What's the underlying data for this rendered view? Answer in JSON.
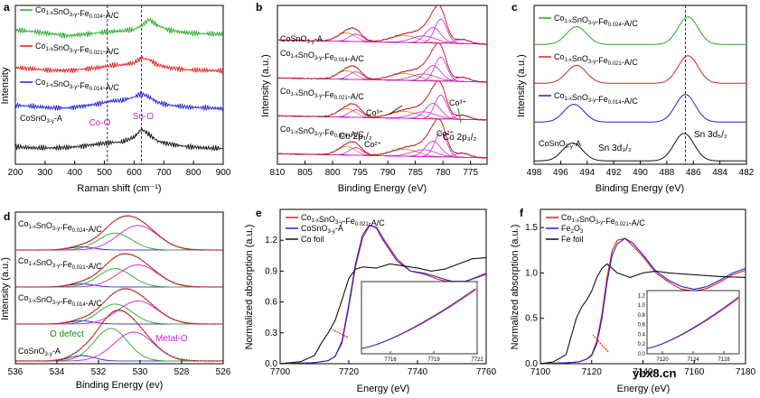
{
  "watermark": "ybx8.cn",
  "chart_data": [
    {
      "id": "a",
      "type": "line",
      "panel_label": "a",
      "xlabel": "Raman shift (cm⁻¹)",
      "ylabel": "Intensity",
      "xlim": [
        200,
        900
      ],
      "xticks": [
        200,
        300,
        400,
        500,
        600,
        700,
        800,
        900
      ],
      "vlines": [
        510,
        625
      ],
      "annotations": [
        {
          "text": "Co-O",
          "x": 500,
          "color": "#d020d0"
        },
        {
          "text": "Sn-O",
          "x": 625,
          "color": "#d020d0"
        }
      ],
      "series": [
        {
          "name": "Co1-xSnO3-y-Fe0.024-A/C",
          "color": "#22aa22",
          "offset": 4,
          "x": [
            200,
            260,
            320,
            380,
            430,
            480,
            520,
            560,
            600,
            625,
            650,
            680,
            720,
            780,
            840,
            900
          ],
          "y": [
            0.55,
            0.5,
            0.42,
            0.35,
            0.4,
            0.45,
            0.5,
            0.52,
            0.58,
            0.72,
            0.95,
            0.72,
            0.55,
            0.45,
            0.42,
            0.4
          ]
        },
        {
          "name": "Co1-xSnO3-y-Fe0.021-A/C",
          "color": "#e02020",
          "offset": 3,
          "x": [
            200,
            260,
            320,
            380,
            430,
            480,
            520,
            560,
            600,
            625,
            650,
            680,
            720,
            780,
            840,
            900
          ],
          "y": [
            0.5,
            0.45,
            0.4,
            0.4,
            0.45,
            0.5,
            0.58,
            0.6,
            0.68,
            0.85,
            0.8,
            0.6,
            0.5,
            0.42,
            0.4,
            0.38
          ]
        },
        {
          "name": "Co1-xSnO3-y-Fe0.014-A/C",
          "color": "#2020d0",
          "offset": 2,
          "x": [
            200,
            260,
            320,
            380,
            430,
            480,
            520,
            560,
            600,
            625,
            650,
            680,
            720,
            780,
            840,
            900
          ],
          "y": [
            0.45,
            0.4,
            0.35,
            0.35,
            0.42,
            0.5,
            0.6,
            0.62,
            0.75,
            0.88,
            0.75,
            0.55,
            0.45,
            0.38,
            0.35,
            0.32
          ]
        },
        {
          "name": "CoSnO3-y-A",
          "color": "#111111",
          "offset": 1,
          "x": [
            200,
            260,
            320,
            380,
            430,
            480,
            520,
            560,
            600,
            625,
            650,
            680,
            720,
            780,
            840,
            900
          ],
          "y": [
            0.25,
            0.2,
            0.2,
            0.22,
            0.28,
            0.35,
            0.4,
            0.42,
            0.6,
            0.9,
            0.7,
            0.45,
            0.35,
            0.25,
            0.2,
            0.18
          ]
        }
      ]
    },
    {
      "id": "b",
      "type": "line",
      "panel_label": "b",
      "xlabel": "Binding Energy (eV)",
      "ylabel": "Intensity (a.u.)",
      "xlim": [
        810,
        772
      ],
      "xticks": [
        810,
        805,
        800,
        795,
        790,
        785,
        780,
        775
      ],
      "series": [
        {
          "name": "Co1-xSnO3-y-Fe0.024-A/C",
          "peaks": [
            {
              "center": 796.2,
              "height": 0.35
            },
            {
              "center": 786.5,
              "height": 0.3
            },
            {
              "center": 780.6,
              "height": 0.95
            }
          ]
        },
        {
          "name": "Co1-xSnO3-y-Fe0.021-A/C",
          "peaks": [
            {
              "center": 796.2,
              "height": 0.4
            },
            {
              "center": 786.5,
              "height": 0.35
            },
            {
              "center": 780.6,
              "height": 1.0
            }
          ]
        },
        {
          "name": "Co1-xSnO3-y-Fe0.014-A/C",
          "peaks": [
            {
              "center": 796.2,
              "height": 0.4
            },
            {
              "center": 786.5,
              "height": 0.35
            },
            {
              "center": 780.6,
              "height": 1.0
            }
          ]
        },
        {
          "name": "CoSnO3-y-A",
          "peaks": [
            {
              "center": 796.2,
              "height": 0.45
            },
            {
              "center": 786.5,
              "height": 0.3
            },
            {
              "center": 780.6,
              "height": 1.0
            }
          ]
        }
      ],
      "annotations": [
        "Co³⁺",
        "Co³⁺",
        "Co²⁺",
        "Co²⁺",
        "Co 2p₁/₂",
        "Co 2p₃/₂"
      ]
    },
    {
      "id": "c",
      "type": "line",
      "panel_label": "c",
      "xlabel": "Binding Energy (eV)",
      "ylabel": "Intensity (a.u.)",
      "xlim": [
        498,
        482
      ],
      "xticks": [
        498,
        496,
        494,
        492,
        490,
        488,
        486,
        484,
        482
      ],
      "vline": 486.6,
      "annotations": [
        "Sn 3d₅/₂",
        "Sn 3d₃/₂"
      ],
      "series": [
        {
          "name": "Co1-xSnO3-y-Fe0.024-A/C",
          "color": "#22aa22",
          "peaks": [
            {
              "center": 494.8,
              "height": 0.55
            },
            {
              "center": 486.4,
              "height": 0.85
            }
          ]
        },
        {
          "name": "Co1-xSnO3-y-Fe0.021-A/C",
          "color": "#e02020",
          "peaks": [
            {
              "center": 494.8,
              "height": 0.55
            },
            {
              "center": 486.4,
              "height": 0.85
            }
          ]
        },
        {
          "name": "Co1-xSnO3-y-Fe0.014-A/C",
          "color": "#2020d0",
          "peaks": [
            {
              "center": 495.0,
              "height": 0.55
            },
            {
              "center": 486.6,
              "height": 0.85
            }
          ]
        },
        {
          "name": "CoSnO3-y-A",
          "color": "#111111",
          "peaks": [
            {
              "center": 495.1,
              "height": 0.55
            },
            {
              "center": 486.7,
              "height": 0.85
            }
          ]
        }
      ]
    },
    {
      "id": "d",
      "type": "line",
      "panel_label": "d",
      "xlabel": "Binding Energy (ev)",
      "ylabel": "Intensity (a.u.)",
      "xlim": [
        536,
        526
      ],
      "xticks": [
        536,
        534,
        532,
        530,
        528,
        526
      ],
      "annotations": [
        {
          "text": "O defect",
          "color": "#118811"
        },
        {
          "text": "Metal-O",
          "color": "#d020d0"
        }
      ],
      "series": [
        {
          "name": "Co1-xSnO3-y-Fe0.024-A/C",
          "peaks": [
            {
              "center": 532.8,
              "height": 0.1
            },
            {
              "center": 531.2,
              "height": 0.55
            },
            {
              "center": 530.1,
              "height": 0.8
            }
          ]
        },
        {
          "name": "Co1-xSnO3-y-Fe0.021-A/C",
          "peaks": [
            {
              "center": 532.8,
              "height": 0.1
            },
            {
              "center": 531.2,
              "height": 0.6
            },
            {
              "center": 530.1,
              "height": 0.72
            }
          ]
        },
        {
          "name": "Co1-xSnO3-y-Fe0.014-A/C",
          "peaks": [
            {
              "center": 532.8,
              "height": 0.1
            },
            {
              "center": 531.2,
              "height": 0.65
            },
            {
              "center": 530.1,
              "height": 0.75
            }
          ]
        },
        {
          "name": "CoSnO3-y-A",
          "peaks": [
            {
              "center": 532.8,
              "height": 0.15
            },
            {
              "center": 531.4,
              "height": 0.9
            },
            {
              "center": 530.3,
              "height": 0.8
            }
          ]
        }
      ]
    },
    {
      "id": "e",
      "type": "line",
      "panel_label": "e",
      "xlabel": "Energy (eV)",
      "ylabel": "Normalized absorption (a.u.)",
      "xlim": [
        7700,
        7760
      ],
      "ylim": [
        0.0,
        1.5
      ],
      "xticks": [
        7700,
        7720,
        7740,
        7760
      ],
      "yticks": [
        0.0,
        0.3,
        0.6,
        0.9,
        1.2
      ],
      "series": [
        {
          "name": "Co1-xSnO3-y-Fe0.021-A/C",
          "color": "#e02020",
          "x": [
            7700,
            7710,
            7714,
            7716,
            7718,
            7720,
            7722,
            7724,
            7726,
            7728,
            7730,
            7734,
            7738,
            7742,
            7746,
            7750,
            7754,
            7760
          ],
          "y": [
            0.0,
            0.01,
            0.03,
            0.07,
            0.2,
            0.55,
            0.95,
            1.22,
            1.34,
            1.33,
            1.22,
            1.02,
            0.9,
            0.87,
            0.82,
            0.79,
            0.8,
            0.88
          ]
        },
        {
          "name": "CoSnO3-y-A",
          "color": "#2020d0",
          "x": [
            7700,
            7710,
            7714,
            7716,
            7718,
            7720,
            7722,
            7724,
            7726,
            7728,
            7730,
            7734,
            7738,
            7742,
            7746,
            7750,
            7754,
            7760
          ],
          "y": [
            0.0,
            0.01,
            0.03,
            0.07,
            0.22,
            0.58,
            0.98,
            1.25,
            1.35,
            1.32,
            1.2,
            1.0,
            0.9,
            0.88,
            0.84,
            0.8,
            0.8,
            0.87
          ]
        },
        {
          "name": "Co foil",
          "color": "#111111",
          "x": [
            7700,
            7706,
            7710,
            7712,
            7714,
            7716,
            7718,
            7720,
            7722,
            7724,
            7728,
            7732,
            7736,
            7740,
            7744,
            7748,
            7752,
            7756,
            7760
          ],
          "y": [
            0.0,
            0.02,
            0.08,
            0.2,
            0.3,
            0.42,
            0.62,
            0.83,
            0.92,
            0.94,
            0.93,
            0.97,
            0.95,
            0.93,
            0.9,
            0.92,
            0.97,
            1.02,
            1.03
          ]
        }
      ],
      "inset": {
        "xlim": [
          7714,
          7722
        ],
        "xticks": [
          7716,
          7719,
          7722
        ]
      }
    },
    {
      "id": "f",
      "type": "line",
      "panel_label": "f",
      "xlabel": "Energy (eV)",
      "ylabel": "Normalized absorption (a.u.)",
      "xlim": [
        7100,
        7180
      ],
      "ylim": [
        0.0,
        1.7
      ],
      "xticks": [
        7100,
        7120,
        7140,
        7160,
        7180
      ],
      "yticks": [
        0.0,
        0.5,
        1.0,
        1.5
      ],
      "series": [
        {
          "name": "Co1-xSnO3-y-Fe0.021-A/C",
          "color": "#e02020",
          "x": [
            7100,
            7110,
            7115,
            7118,
            7120,
            7122,
            7124,
            7126,
            7128,
            7130,
            7133,
            7136,
            7140,
            7145,
            7150,
            7155,
            7160,
            7165,
            7170,
            7175,
            7180
          ],
          "y": [
            0.0,
            0.01,
            0.02,
            0.05,
            0.1,
            0.25,
            0.55,
            0.95,
            1.25,
            1.36,
            1.38,
            1.3,
            1.18,
            1.0,
            0.9,
            0.82,
            0.8,
            0.83,
            0.9,
            0.98,
            1.03
          ]
        },
        {
          "name": "Fe2O3",
          "color": "#2020d0",
          "x": [
            7100,
            7110,
            7115,
            7118,
            7120,
            7122,
            7124,
            7126,
            7128,
            7130,
            7133,
            7136,
            7140,
            7145,
            7150,
            7155,
            7160,
            7165,
            7170,
            7175,
            7180
          ],
          "y": [
            0.0,
            0.01,
            0.02,
            0.05,
            0.09,
            0.22,
            0.5,
            0.9,
            1.2,
            1.32,
            1.38,
            1.33,
            1.2,
            1.02,
            0.92,
            0.85,
            0.82,
            0.85,
            0.92,
            1.0,
            1.05
          ]
        },
        {
          "name": "Fe foil",
          "color": "#111111",
          "x": [
            7100,
            7105,
            7110,
            7112,
            7114,
            7116,
            7118,
            7120,
            7122,
            7124,
            7126,
            7130,
            7135,
            7140,
            7145,
            7150,
            7160,
            7170,
            7180
          ],
          "y": [
            0.0,
            0.02,
            0.1,
            0.3,
            0.5,
            0.62,
            0.7,
            0.8,
            0.95,
            1.05,
            1.1,
            1.0,
            0.95,
            1.0,
            1.02,
            1.0,
            0.98,
            0.96,
            0.95
          ]
        }
      ],
      "inset": {
        "xlim": [
          7118,
          7130
        ],
        "xticks": [
          7120,
          7124,
          7128
        ],
        "ylim": [
          0.0,
          1.3
        ],
        "yticks": [
          0.0,
          0.2,
          0.4,
          0.6,
          0.8,
          1.0,
          1.2
        ]
      }
    }
  ]
}
